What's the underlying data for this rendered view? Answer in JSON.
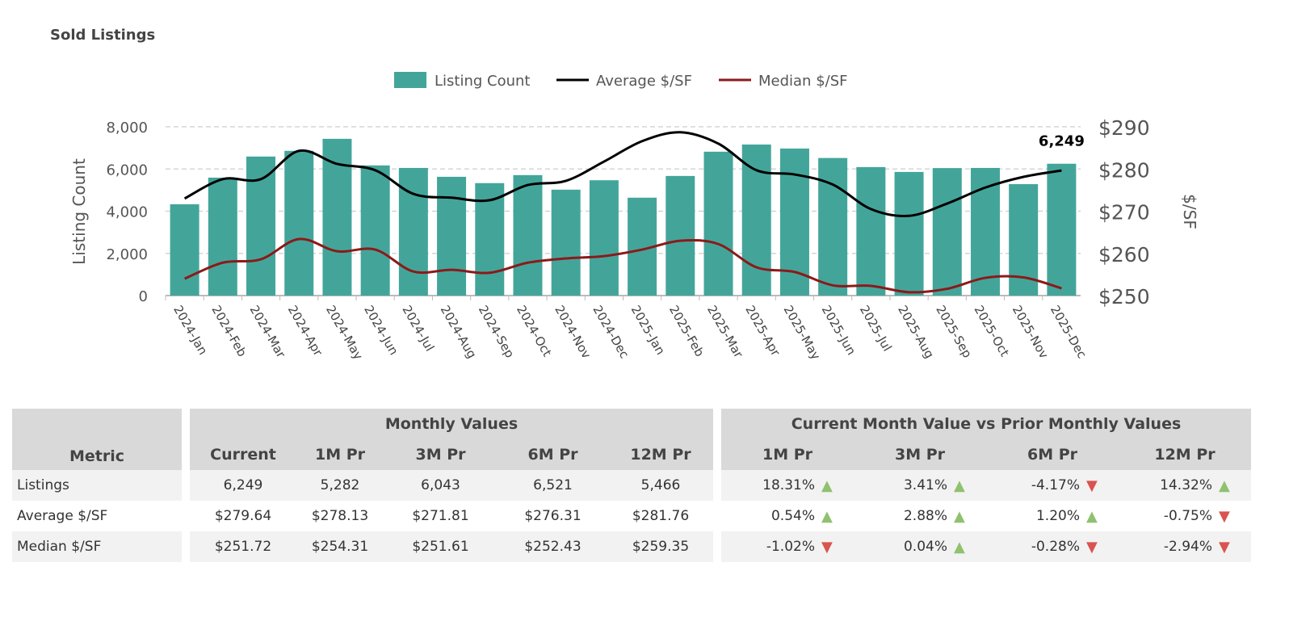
{
  "title": "Sold Listings",
  "colors": {
    "bar": "#43a59a",
    "average": "#000000",
    "median": "#8b1a1a",
    "up": "#8fc16f",
    "down": "#d9534f",
    "header_bg": "#d9d9d9"
  },
  "chart_data": {
    "type": "bar+line",
    "categories": [
      "2024-Jan",
      "2024-Feb",
      "2024-Mar",
      "2024-Apr",
      "2024-May",
      "2024-Jun",
      "2024-Jul",
      "2024-Aug",
      "2024-Sep",
      "2024-Oct",
      "2024-Nov",
      "2024-Dec",
      "2025-Jan",
      "2025-Feb",
      "2025-Mar",
      "2025-Apr",
      "2025-May",
      "2025-Jun",
      "2025-Jul",
      "2025-Aug",
      "2025-Sep",
      "2025-Oct",
      "2025-Nov",
      "2025-Dec"
    ],
    "series": [
      {
        "name": "Listing Count",
        "type": "bar",
        "axis": "left",
        "values": [
          4330,
          5590,
          6590,
          6860,
          7430,
          6170,
          6050,
          5630,
          5330,
          5710,
          5020,
          5466,
          4640,
          5670,
          6820,
          7160,
          6970,
          6521,
          6090,
          5860,
          6043,
          6050,
          5282,
          6249
        ]
      },
      {
        "name": "Average $/SF",
        "type": "line",
        "axis": "right",
        "values": [
          273.0,
          277.6,
          277.6,
          284.3,
          281.2,
          279.7,
          274.1,
          273.2,
          272.6,
          276.2,
          277.2,
          281.76,
          286.6,
          288.7,
          286.0,
          279.7,
          278.7,
          276.31,
          270.5,
          268.9,
          271.81,
          275.6,
          278.13,
          279.64
        ]
      },
      {
        "name": "Median $/SF",
        "type": "line",
        "axis": "right",
        "values": [
          254.0,
          257.8,
          258.6,
          263.4,
          260.5,
          260.9,
          255.7,
          256.1,
          255.4,
          257.8,
          258.8,
          259.35,
          260.9,
          263.0,
          262.2,
          256.7,
          255.6,
          252.43,
          252.3,
          250.8,
          251.61,
          254.2,
          254.31,
          251.72
        ]
      }
    ],
    "ylabel": "Listing Count",
    "y2label": "$/SF",
    "ylim": [
      0,
      8000
    ],
    "y2lim": [
      250,
      290
    ],
    "yticks": [
      "0",
      "2,000",
      "4,000",
      "6,000",
      "8,000"
    ],
    "y2ticks": [
      "$250",
      "$260",
      "$270",
      "$280",
      "$290"
    ],
    "data_label": "6,249",
    "grid": true,
    "legend": "top-center"
  },
  "table": {
    "group1": "Monthly Values",
    "group2": "Current Month Value vs Prior Monthly Values",
    "headers": [
      "Metric",
      "Current",
      "1M Pr",
      "3M Pr",
      "6M Pr",
      "12M Pr",
      "1M Pr",
      "3M Pr",
      "6M Pr",
      "12M Pr"
    ],
    "rows": [
      {
        "metric": "Listings",
        "values": [
          "6,249",
          "5,282",
          "6,043",
          "6,521",
          "5,466"
        ],
        "changes": [
          [
            "18.31%",
            "up"
          ],
          [
            "3.41%",
            "up"
          ],
          [
            "-4.17%",
            "down"
          ],
          [
            "14.32%",
            "up"
          ]
        ]
      },
      {
        "metric": "Average $/SF",
        "values": [
          "$279.64",
          "$278.13",
          "$271.81",
          "$276.31",
          "$281.76"
        ],
        "changes": [
          [
            "0.54%",
            "up"
          ],
          [
            "2.88%",
            "up"
          ],
          [
            "1.20%",
            "up"
          ],
          [
            "-0.75%",
            "down"
          ]
        ]
      },
      {
        "metric": "Median $/SF",
        "values": [
          "$251.72",
          "$254.31",
          "$251.61",
          "$252.43",
          "$259.35"
        ],
        "changes": [
          [
            "-1.02%",
            "down"
          ],
          [
            "0.04%",
            "up"
          ],
          [
            "-0.28%",
            "down"
          ],
          [
            "-2.94%",
            "down"
          ]
        ]
      }
    ]
  }
}
